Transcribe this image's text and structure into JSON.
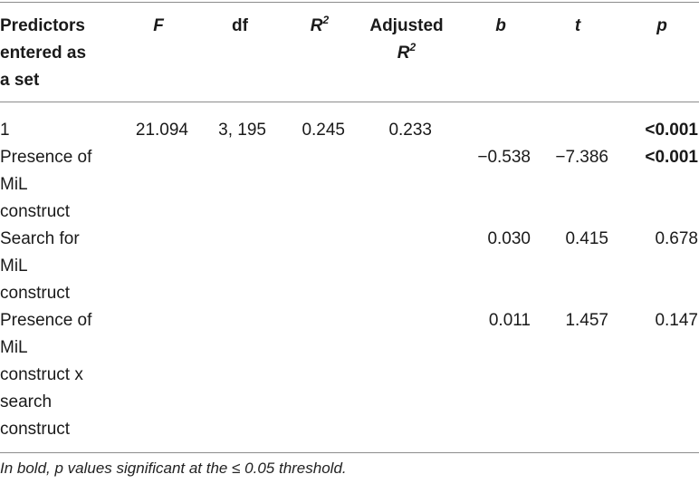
{
  "table": {
    "headers": {
      "predictors": [
        "Predictors",
        "entered as",
        "a set"
      ],
      "F": "F",
      "df": "df",
      "R2_base": "R",
      "R2_sup": "2",
      "adj_line1": "Adjusted",
      "adj_base": "R",
      "adj_sup": "2",
      "b": "b",
      "t": "t",
      "p": "p"
    },
    "rows": [
      {
        "predictor": [
          "1"
        ],
        "F": "21.094",
        "df": "3, 195",
        "R2": "0.245",
        "adjR2": "0.233",
        "b": "",
        "t": "",
        "p": "<0.001"
      },
      {
        "predictor": [
          "Presence of",
          "MiL",
          "construct"
        ],
        "F": "",
        "df": "",
        "R2": "",
        "adjR2": "",
        "b": "−0.538",
        "t": "−7.386",
        "p": "<0.001"
      },
      {
        "predictor": [
          "Search for",
          "MiL",
          "construct"
        ],
        "F": "",
        "df": "",
        "R2": "",
        "adjR2": "",
        "b": "0.030",
        "t": "0.415",
        "p": "0.678"
      },
      {
        "predictor": [
          "Presence of",
          "MiL",
          "construct x",
          "search",
          "construct"
        ],
        "F": "",
        "df": "",
        "R2": "",
        "adjR2": "",
        "b": "0.011",
        "t": "1.457",
        "p": "0.147"
      }
    ]
  },
  "footnote": "In bold, p values significant at the ≤ 0.05 threshold."
}
